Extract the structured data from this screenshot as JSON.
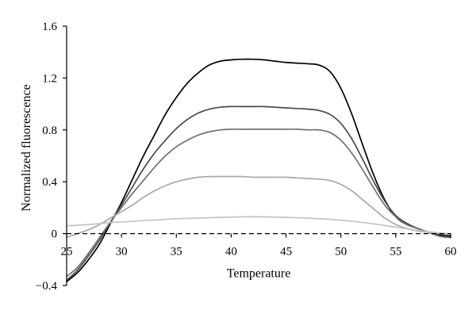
{
  "chart_data": {
    "type": "line",
    "title": "",
    "xlabel": "Temperature",
    "ylabel": "Normalized fluorescence",
    "xlim": [
      25,
      60
    ],
    "ylim": [
      -0.4,
      1.6
    ],
    "xticks": [
      25,
      30,
      35,
      40,
      45,
      50,
      55,
      60
    ],
    "yticks": [
      -0.4,
      0,
      0.4,
      0.8,
      1.2,
      1.6
    ],
    "ytick_labels": [
      "−0.4",
      "0",
      "0.4",
      "0.8",
      "1.2",
      "1.6"
    ],
    "grid": false,
    "legend": "none",
    "baseline": {
      "y": 0,
      "style": "dashed",
      "color": "#000000"
    },
    "series": [
      {
        "color": "#000000",
        "points": [
          [
            25,
            -0.37
          ],
          [
            26,
            -0.3
          ],
          [
            27,
            -0.2
          ],
          [
            28,
            -0.08
          ],
          [
            29,
            0.08
          ],
          [
            30,
            0.24
          ],
          [
            31,
            0.42
          ],
          [
            32,
            0.6
          ],
          [
            33,
            0.76
          ],
          [
            34,
            0.92
          ],
          [
            35,
            1.05
          ],
          [
            36,
            1.16
          ],
          [
            37,
            1.24
          ],
          [
            38,
            1.3
          ],
          [
            39,
            1.33
          ],
          [
            40,
            1.34
          ],
          [
            41,
            1.345
          ],
          [
            42,
            1.345
          ],
          [
            43,
            1.34
          ],
          [
            44,
            1.33
          ],
          [
            45,
            1.32
          ],
          [
            46,
            1.315
          ],
          [
            47,
            1.31
          ],
          [
            48,
            1.3
          ],
          [
            49,
            1.25
          ],
          [
            50,
            1.12
          ],
          [
            51,
            0.92
          ],
          [
            52,
            0.68
          ],
          [
            53,
            0.45
          ],
          [
            54,
            0.26
          ],
          [
            55,
            0.13
          ],
          [
            56,
            0.07
          ],
          [
            57,
            0.04
          ],
          [
            58,
            0.01
          ],
          [
            59,
            -0.01
          ],
          [
            60,
            -0.02
          ]
        ]
      },
      {
        "color": "#4a4a4a",
        "points": [
          [
            25,
            -0.36
          ],
          [
            26,
            -0.28
          ],
          [
            27,
            -0.17
          ],
          [
            28,
            -0.05
          ],
          [
            29,
            0.09
          ],
          [
            30,
            0.22
          ],
          [
            31,
            0.36
          ],
          [
            32,
            0.5
          ],
          [
            33,
            0.62
          ],
          [
            34,
            0.72
          ],
          [
            35,
            0.81
          ],
          [
            36,
            0.88
          ],
          [
            37,
            0.93
          ],
          [
            38,
            0.96
          ],
          [
            39,
            0.975
          ],
          [
            40,
            0.98
          ],
          [
            41,
            0.98
          ],
          [
            42,
            0.98
          ],
          [
            43,
            0.98
          ],
          [
            44,
            0.975
          ],
          [
            45,
            0.97
          ],
          [
            46,
            0.965
          ],
          [
            47,
            0.96
          ],
          [
            48,
            0.95
          ],
          [
            49,
            0.92
          ],
          [
            50,
            0.85
          ],
          [
            51,
            0.73
          ],
          [
            52,
            0.57
          ],
          [
            53,
            0.4
          ],
          [
            54,
            0.25
          ],
          [
            55,
            0.14
          ],
          [
            56,
            0.08
          ],
          [
            57,
            0.04
          ],
          [
            58,
            0.01
          ],
          [
            59,
            -0.02
          ],
          [
            60,
            -0.03
          ]
        ]
      },
      {
        "color": "#707070",
        "points": [
          [
            25,
            -0.33
          ],
          [
            26,
            -0.26
          ],
          [
            27,
            -0.15
          ],
          [
            28,
            -0.03
          ],
          [
            29,
            0.09
          ],
          [
            30,
            0.2
          ],
          [
            31,
            0.31
          ],
          [
            32,
            0.41
          ],
          [
            33,
            0.51
          ],
          [
            34,
            0.6
          ],
          [
            35,
            0.67
          ],
          [
            36,
            0.72
          ],
          [
            37,
            0.76
          ],
          [
            38,
            0.785
          ],
          [
            39,
            0.8
          ],
          [
            40,
            0.805
          ],
          [
            41,
            0.805
          ],
          [
            42,
            0.805
          ],
          [
            43,
            0.805
          ],
          [
            44,
            0.805
          ],
          [
            45,
            0.805
          ],
          [
            46,
            0.805
          ],
          [
            47,
            0.8
          ],
          [
            48,
            0.8
          ],
          [
            49,
            0.78
          ],
          [
            50,
            0.72
          ],
          [
            51,
            0.62
          ],
          [
            52,
            0.49
          ],
          [
            53,
            0.35
          ],
          [
            54,
            0.22
          ],
          [
            55,
            0.13
          ],
          [
            56,
            0.07
          ],
          [
            57,
            0.04
          ],
          [
            58,
            0.01
          ],
          [
            59,
            -0.02
          ],
          [
            60,
            -0.03
          ]
        ]
      },
      {
        "color": "#a8a8a8",
        "points": [
          [
            25,
            -0.03
          ],
          [
            26,
            0.0
          ],
          [
            27,
            0.03
          ],
          [
            28,
            0.07
          ],
          [
            29,
            0.12
          ],
          [
            30,
            0.17
          ],
          [
            31,
            0.22
          ],
          [
            32,
            0.28
          ],
          [
            33,
            0.33
          ],
          [
            34,
            0.37
          ],
          [
            35,
            0.4
          ],
          [
            36,
            0.42
          ],
          [
            37,
            0.435
          ],
          [
            38,
            0.44
          ],
          [
            39,
            0.44
          ],
          [
            40,
            0.44
          ],
          [
            41,
            0.44
          ],
          [
            42,
            0.435
          ],
          [
            43,
            0.435
          ],
          [
            44,
            0.435
          ],
          [
            45,
            0.435
          ],
          [
            46,
            0.43
          ],
          [
            47,
            0.425
          ],
          [
            48,
            0.42
          ],
          [
            49,
            0.41
          ],
          [
            50,
            0.38
          ],
          [
            51,
            0.33
          ],
          [
            52,
            0.26
          ],
          [
            53,
            0.19
          ],
          [
            54,
            0.12
          ],
          [
            55,
            0.07
          ],
          [
            56,
            0.04
          ],
          [
            57,
            0.02
          ],
          [
            58,
            0.01
          ],
          [
            59,
            0.0
          ],
          [
            60,
            -0.01
          ]
        ]
      },
      {
        "color": "#c4c4c4",
        "points": [
          [
            25,
            0.06
          ],
          [
            27,
            0.07
          ],
          [
            29,
            0.085
          ],
          [
            31,
            0.095
          ],
          [
            33,
            0.105
          ],
          [
            35,
            0.115
          ],
          [
            37,
            0.12
          ],
          [
            39,
            0.125
          ],
          [
            41,
            0.13
          ],
          [
            43,
            0.13
          ],
          [
            45,
            0.125
          ],
          [
            47,
            0.12
          ],
          [
            49,
            0.11
          ],
          [
            51,
            0.095
          ],
          [
            53,
            0.075
          ],
          [
            55,
            0.05
          ],
          [
            57,
            0.025
          ],
          [
            58,
            0.015
          ],
          [
            59,
            0.005
          ],
          [
            60,
            0.0
          ]
        ]
      }
    ]
  }
}
